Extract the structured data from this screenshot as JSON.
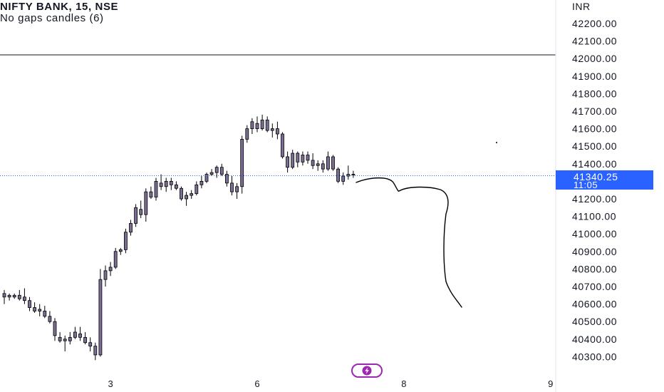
{
  "header": {
    "symbol_line": "NIFTY BANK, 15, NSE",
    "indicator_line": "No gaps candles (6)"
  },
  "price_axis": {
    "currency": "INR",
    "tick_labels": [
      "42200.00",
      "42100.00",
      "42000.00",
      "41900.00",
      "41800.00",
      "41700.00",
      "41600.00",
      "41500.00",
      "41400.00",
      "41200.00",
      "41100.00",
      "41000.00",
      "40900.00",
      "40800.00",
      "40700.00",
      "40600.00",
      "40500.00",
      "40400.00",
      "40300.00"
    ]
  },
  "last_price": {
    "price": "41340.25",
    "countdown": "11:05",
    "color": "#2962ff"
  },
  "colors": {
    "candle_body": "#7b6d93",
    "wick": "#000000",
    "axis_line": "#131722",
    "drawing": "#000000",
    "badge": "#9c27b0"
  },
  "icons": {
    "badge": "lightning-bolt-icon"
  },
  "chart_data": {
    "type": "candlestick",
    "ylim": [
      40280,
      42330
    ],
    "x_tick_labels": [
      {
        "label": "3",
        "bar": 21
      },
      {
        "label": "6",
        "bar": 50
      },
      {
        "label": "8",
        "bar": 79
      },
      {
        "label": "9",
        "bar": 108
      }
    ],
    "candles": [
      [
        40660,
        40680,
        40600,
        40640
      ],
      [
        40640,
        40660,
        40620,
        40650
      ],
      [
        40650,
        40660,
        40630,
        40640
      ],
      [
        40630,
        40680,
        40620,
        40650
      ],
      [
        40640,
        40690,
        40600,
        40620
      ],
      [
        40620,
        40640,
        40560,
        40580
      ],
      [
        40580,
        40610,
        40550,
        40560
      ],
      [
        40560,
        40600,
        40530,
        40570
      ],
      [
        40560,
        40590,
        40520,
        40530
      ],
      [
        40530,
        40560,
        40490,
        40500
      ],
      [
        40500,
        40520,
        40390,
        40420
      ],
      [
        40410,
        40440,
        40380,
        40390
      ],
      [
        40400,
        40420,
        40330,
        40390
      ],
      [
        40390,
        40440,
        40370,
        40410
      ],
      [
        40410,
        40470,
        40400,
        40440
      ],
      [
        40430,
        40470,
        40390,
        40410
      ],
      [
        40410,
        40440,
        40370,
        40380
      ],
      [
        40380,
        40410,
        40330,
        40360
      ],
      [
        40360,
        40380,
        40280,
        40310
      ],
      [
        40310,
        40800,
        40300,
        40740
      ],
      [
        40740,
        40820,
        40700,
        40790
      ],
      [
        40790,
        40840,
        40760,
        40810
      ],
      [
        40810,
        40920,
        40800,
        40900
      ],
      [
        40900,
        40920,
        40880,
        40910
      ],
      [
        40910,
        41030,
        40890,
        41010
      ],
      [
        41010,
        41080,
        40990,
        41060
      ],
      [
        41060,
        41170,
        41040,
        41150
      ],
      [
        41140,
        41190,
        41090,
        41110
      ],
      [
        41110,
        41260,
        41070,
        41240
      ],
      [
        41240,
        41270,
        41200,
        41210
      ],
      [
        41210,
        41320,
        41190,
        41300
      ],
      [
        41290,
        41340,
        41250,
        41270
      ],
      [
        41270,
        41320,
        41240,
        41300
      ],
      [
        41300,
        41320,
        41250,
        41280
      ],
      [
        41280,
        41300,
        41250,
        41260
      ],
      [
        41260,
        41270,
        41190,
        41200
      ],
      [
        41200,
        41240,
        41160,
        41220
      ],
      [
        41220,
        41250,
        41200,
        41230
      ],
      [
        41230,
        41300,
        41220,
        41280
      ],
      [
        41280,
        41330,
        41260,
        41300
      ],
      [
        41300,
        41350,
        41290,
        41340
      ],
      [
        41340,
        41370,
        41330,
        41350
      ],
      [
        41350,
        41390,
        41320,
        41380
      ],
      [
        41380,
        41400,
        41330,
        41340
      ],
      [
        41340,
        41360,
        41270,
        41290
      ],
      [
        41290,
        41330,
        41220,
        41240
      ],
      [
        41240,
        41290,
        41200,
        41270
      ],
      [
        41270,
        41560,
        41230,
        41540
      ],
      [
        41540,
        41620,
        41520,
        41600
      ],
      [
        41600,
        41660,
        41570,
        41640
      ],
      [
        41630,
        41670,
        41580,
        41600
      ],
      [
        41600,
        41680,
        41590,
        41650
      ],
      [
        41650,
        41670,
        41580,
        41590
      ],
      [
        41590,
        41630,
        41550,
        41600
      ],
      [
        41600,
        41640,
        41540,
        41570
      ],
      [
        41570,
        41580,
        41430,
        41440
      ],
      [
        41440,
        41470,
        41350,
        41380
      ],
      [
        41380,
        41480,
        41370,
        41460
      ],
      [
        41460,
        41470,
        41380,
        41410
      ],
      [
        41410,
        41470,
        41390,
        41450
      ],
      [
        41450,
        41470,
        41400,
        41420
      ],
      [
        41420,
        41460,
        41370,
        41390
      ],
      [
        41390,
        41420,
        41360,
        41400
      ],
      [
        41400,
        41420,
        41350,
        41370
      ],
      [
        41370,
        41470,
        41360,
        41440
      ],
      [
        41440,
        41450,
        41360,
        41370
      ],
      [
        41370,
        41380,
        41290,
        41300
      ],
      [
        41300,
        41350,
        41280,
        41330
      ],
      [
        41330,
        41390,
        41310,
        41340
      ],
      [
        41340,
        41360,
        41320,
        41340
      ]
    ]
  }
}
